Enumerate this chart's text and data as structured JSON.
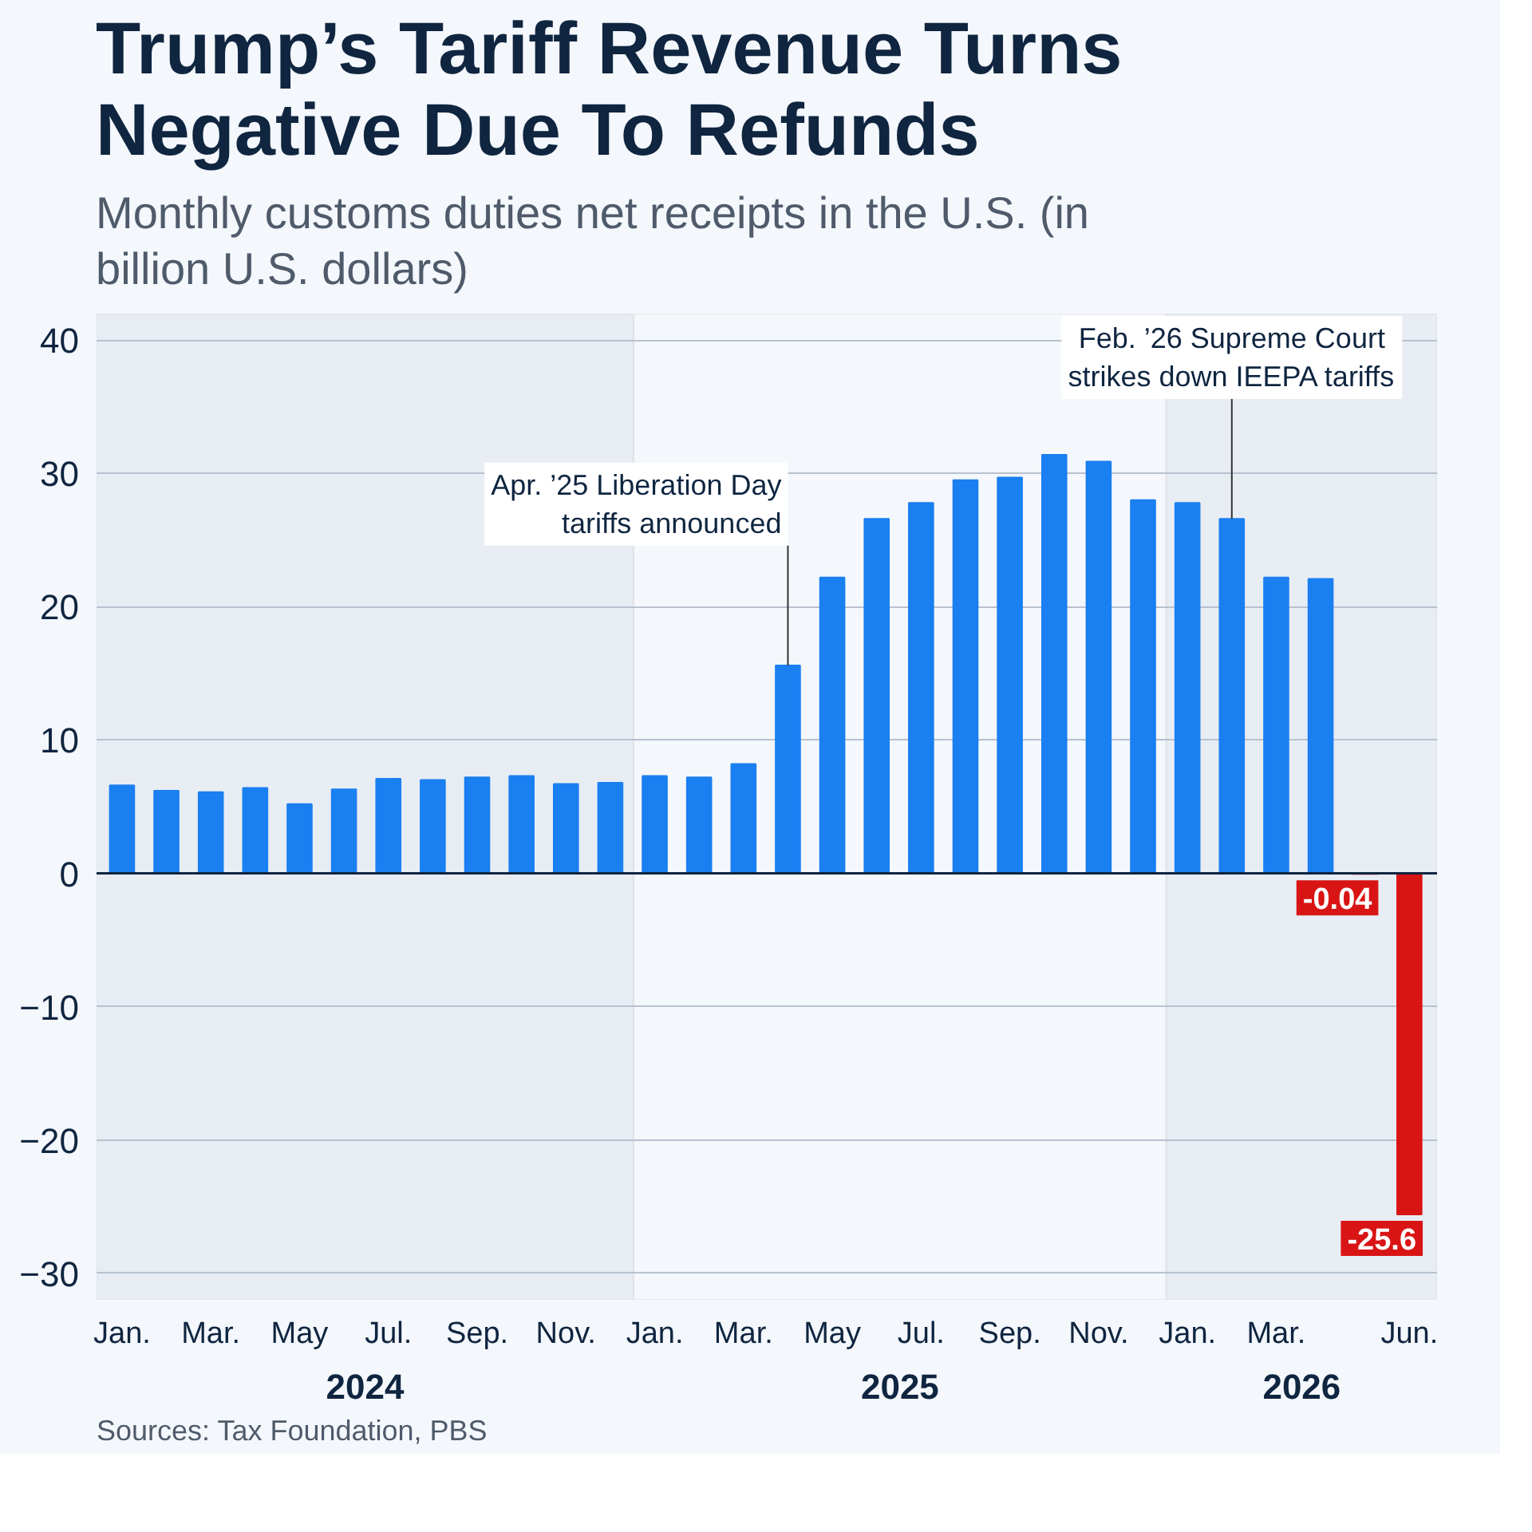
{
  "chart_data": {
    "type": "bar",
    "title": "Trump’s Tariff Revenue Turns Negative Due To Refunds",
    "subtitle": "Monthly customs duties net receipts in the U.S. (in billion U.S. dollars)",
    "x": [
      "2024-01",
      "2024-02",
      "2024-03",
      "2024-04",
      "2024-05",
      "2024-06",
      "2024-07",
      "2024-08",
      "2024-09",
      "2024-10",
      "2024-11",
      "2024-12",
      "2025-01",
      "2025-02",
      "2025-03",
      "2025-04",
      "2025-05",
      "2025-06",
      "2025-07",
      "2025-08",
      "2025-09",
      "2025-10",
      "2025-11",
      "2025-12",
      "2026-01",
      "2026-02",
      "2026-03",
      "2026-04",
      "2026-05",
      "2026-06"
    ],
    "values": [
      6.6,
      6.2,
      6.1,
      6.4,
      5.2,
      6.3,
      7.1,
      7.0,
      7.2,
      7.3,
      6.7,
      6.8,
      7.3,
      7.2,
      8.2,
      15.6,
      22.2,
      26.6,
      27.8,
      29.5,
      29.7,
      31.4,
      30.9,
      28.0,
      27.8,
      26.6,
      22.2,
      22.1,
      -0.04,
      -25.6
    ],
    "colors": [
      "#1a7ff0",
      "#1a7ff0",
      "#1a7ff0",
      "#1a7ff0",
      "#1a7ff0",
      "#1a7ff0",
      "#1a7ff0",
      "#1a7ff0",
      "#1a7ff0",
      "#1a7ff0",
      "#1a7ff0",
      "#1a7ff0",
      "#1a7ff0",
      "#1a7ff0",
      "#1a7ff0",
      "#1a7ff0",
      "#1a7ff0",
      "#1a7ff0",
      "#1a7ff0",
      "#1a7ff0",
      "#1a7ff0",
      "#1a7ff0",
      "#1a7ff0",
      "#1a7ff0",
      "#1a7ff0",
      "#1a7ff0",
      "#1a7ff0",
      "#1a7ff0",
      "#d91414",
      "#d91414"
    ],
    "value_labels": [
      null,
      null,
      null,
      null,
      null,
      null,
      null,
      null,
      null,
      null,
      null,
      null,
      null,
      null,
      null,
      null,
      null,
      null,
      null,
      null,
      null,
      null,
      null,
      null,
      null,
      null,
      null,
      null,
      "-0.04",
      "-25.6"
    ],
    "xlim": [
      "2023-12-14",
      "2026-06-20"
    ],
    "xticks": [
      {
        "value": "2024-01",
        "label": "Jan."
      },
      {
        "value": "2024-03",
        "label": "Mar."
      },
      {
        "value": "2024-05",
        "label": "May"
      },
      {
        "value": "2024-07",
        "label": "Jul."
      },
      {
        "value": "2024-09",
        "label": "Sep."
      },
      {
        "value": "2024-11",
        "label": "Nov."
      },
      {
        "value": "2025-01",
        "label": "Jan."
      },
      {
        "value": "2025-03",
        "label": "Mar."
      },
      {
        "value": "2025-05",
        "label": "May"
      },
      {
        "value": "2025-07",
        "label": "Jul."
      },
      {
        "value": "2025-09",
        "label": "Sep."
      },
      {
        "value": "2025-11",
        "label": "Nov."
      },
      {
        "value": "2026-01",
        "label": "Jan."
      },
      {
        "value": "2026-03",
        "label": "Mar."
      },
      {
        "value": "2026-06",
        "label": "Jun."
      }
    ],
    "ylim": [
      -32,
      42
    ],
    "yticks": [
      -30,
      -20,
      -10,
      0,
      10,
      20,
      30,
      40
    ],
    "grid": "y",
    "bands": [
      {
        "axis": "x",
        "from": "2023-12-14",
        "to": "2024-12-17",
        "label": "2024",
        "color": "#e8edf4"
      },
      {
        "axis": "x",
        "from": "2024-12-17",
        "to": "2025-12-17",
        "label": "2025",
        "color": "#f4f7fb"
      },
      {
        "axis": "x",
        "from": "2025-12-17",
        "to": "2026-06-20",
        "label": "2026",
        "color": "#e8edf4"
      }
    ],
    "annotations": [
      {
        "text": "Apr. ’25 Liberation Day tariffs announced",
        "x": "2025-04",
        "y": 15.6
      },
      {
        "text": "Feb. ’26 Supreme Court strikes down IEEPA tariffs",
        "x": "2026-02",
        "y": 26.6
      },
      "Sources: Tax Foundation, PBS"
    ]
  }
}
